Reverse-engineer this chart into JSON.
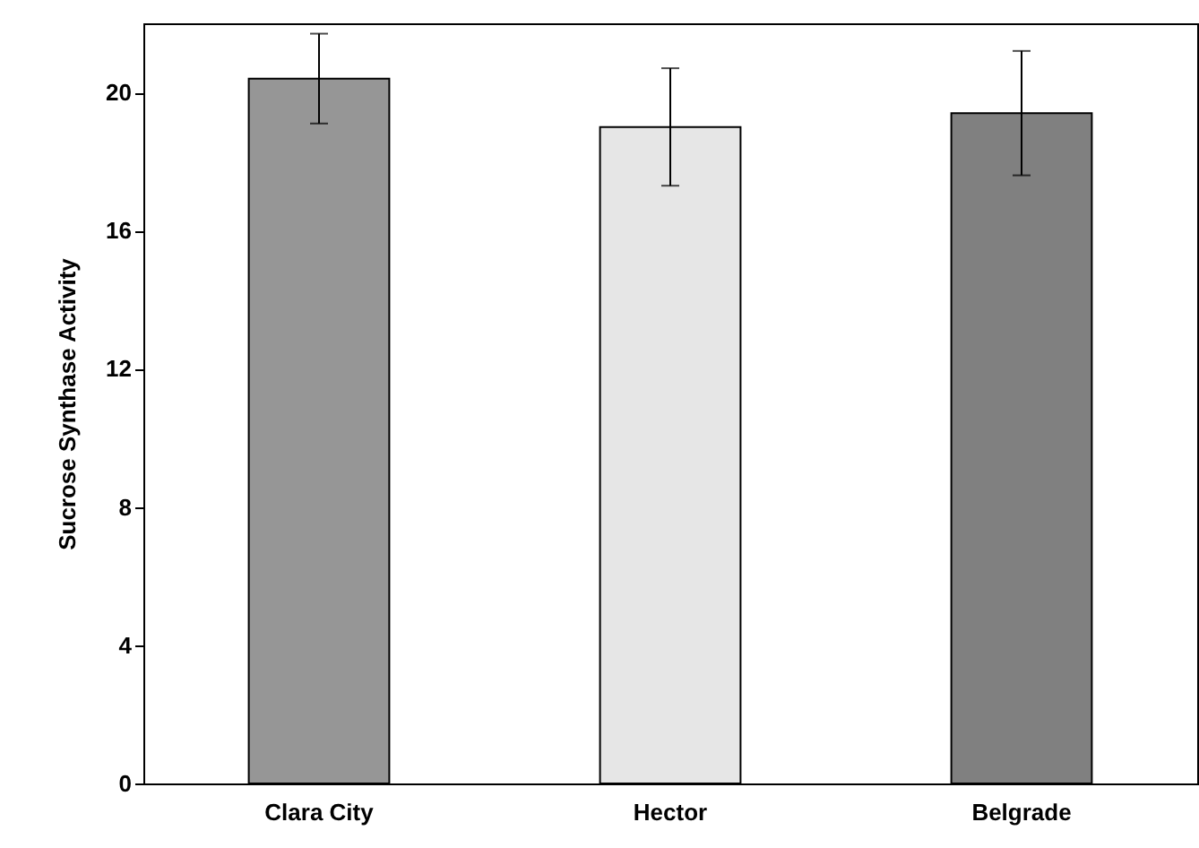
{
  "chart_data": {
    "type": "bar",
    "ylabel": "Sucrose Synthase Activity",
    "categories": [
      "Clara City",
      "Hector",
      "Belgrade"
    ],
    "values": [
      20.4,
      19.0,
      19.4
    ],
    "errors": [
      1.3,
      1.7,
      1.8
    ],
    "colors": [
      "#969696",
      "#e6e6e6",
      "#808080"
    ],
    "ylim": [
      0,
      22
    ],
    "yticks": [
      0,
      4,
      8,
      12,
      16,
      20
    ],
    "grid": false
  }
}
